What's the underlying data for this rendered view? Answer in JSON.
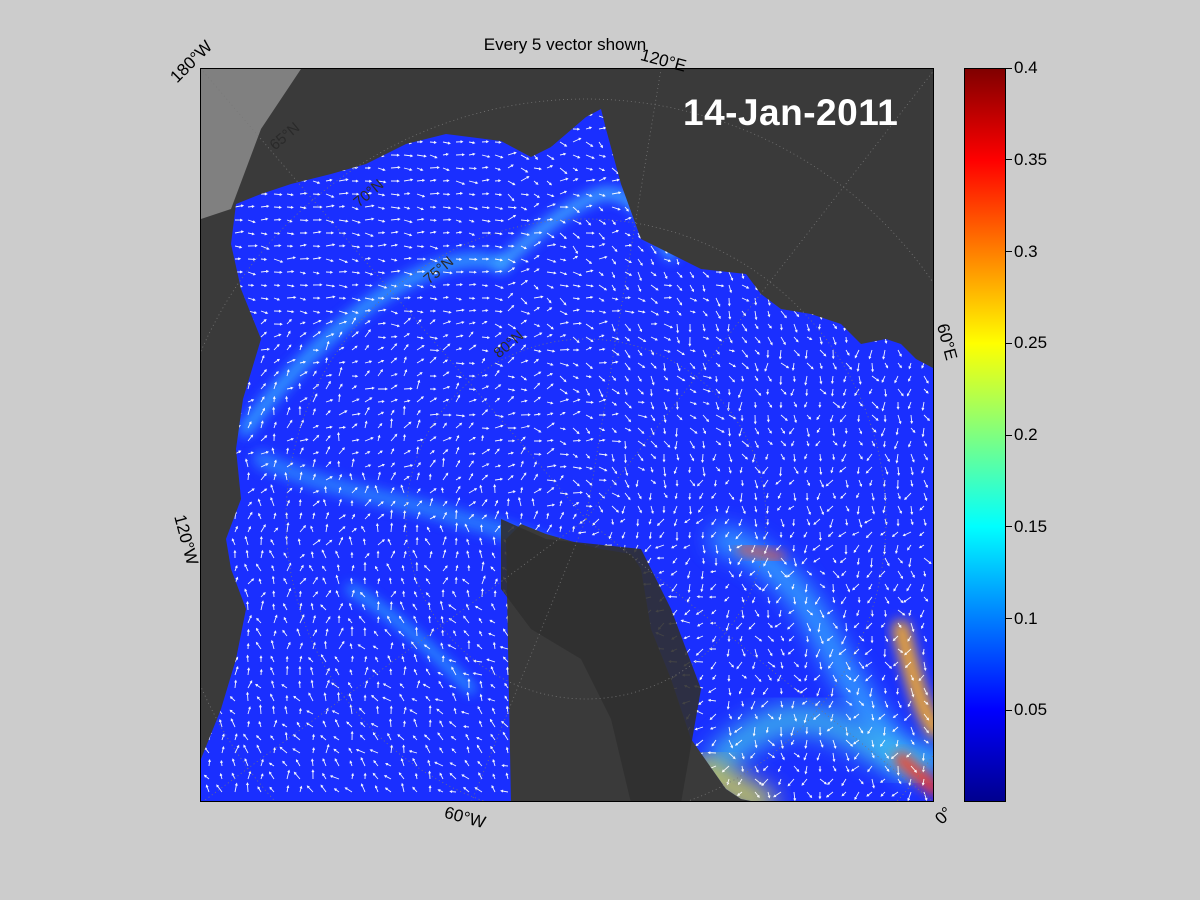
{
  "figure": {
    "title": "Every 5 vector shown",
    "date": "14-Jan-2011"
  },
  "map": {
    "projection": "north-polar-stereographic",
    "longitude_labels": [
      "180°W",
      "120°E",
      "60°E",
      "0°",
      "60°W",
      "120°W"
    ],
    "latitude_labels": [
      "65°N",
      "70°N",
      "75°N",
      "80°N"
    ],
    "colors": {
      "land": "#3a3a3a",
      "greenland_mask": "#303030",
      "outside_domain": "#808080",
      "water_base": "#1a2fff",
      "vectors": "#ffffff"
    }
  },
  "colorbar": {
    "colormap": "jet",
    "min": 0,
    "max": 0.4,
    "ticks": [
      0.05,
      0.1,
      0.15,
      0.2,
      0.25,
      0.3,
      0.35,
      0.4
    ],
    "tick_labels": [
      "0.05",
      "0.1",
      "0.15",
      "0.2",
      "0.25",
      "0.3",
      "0.35",
      "0.4"
    ]
  }
}
